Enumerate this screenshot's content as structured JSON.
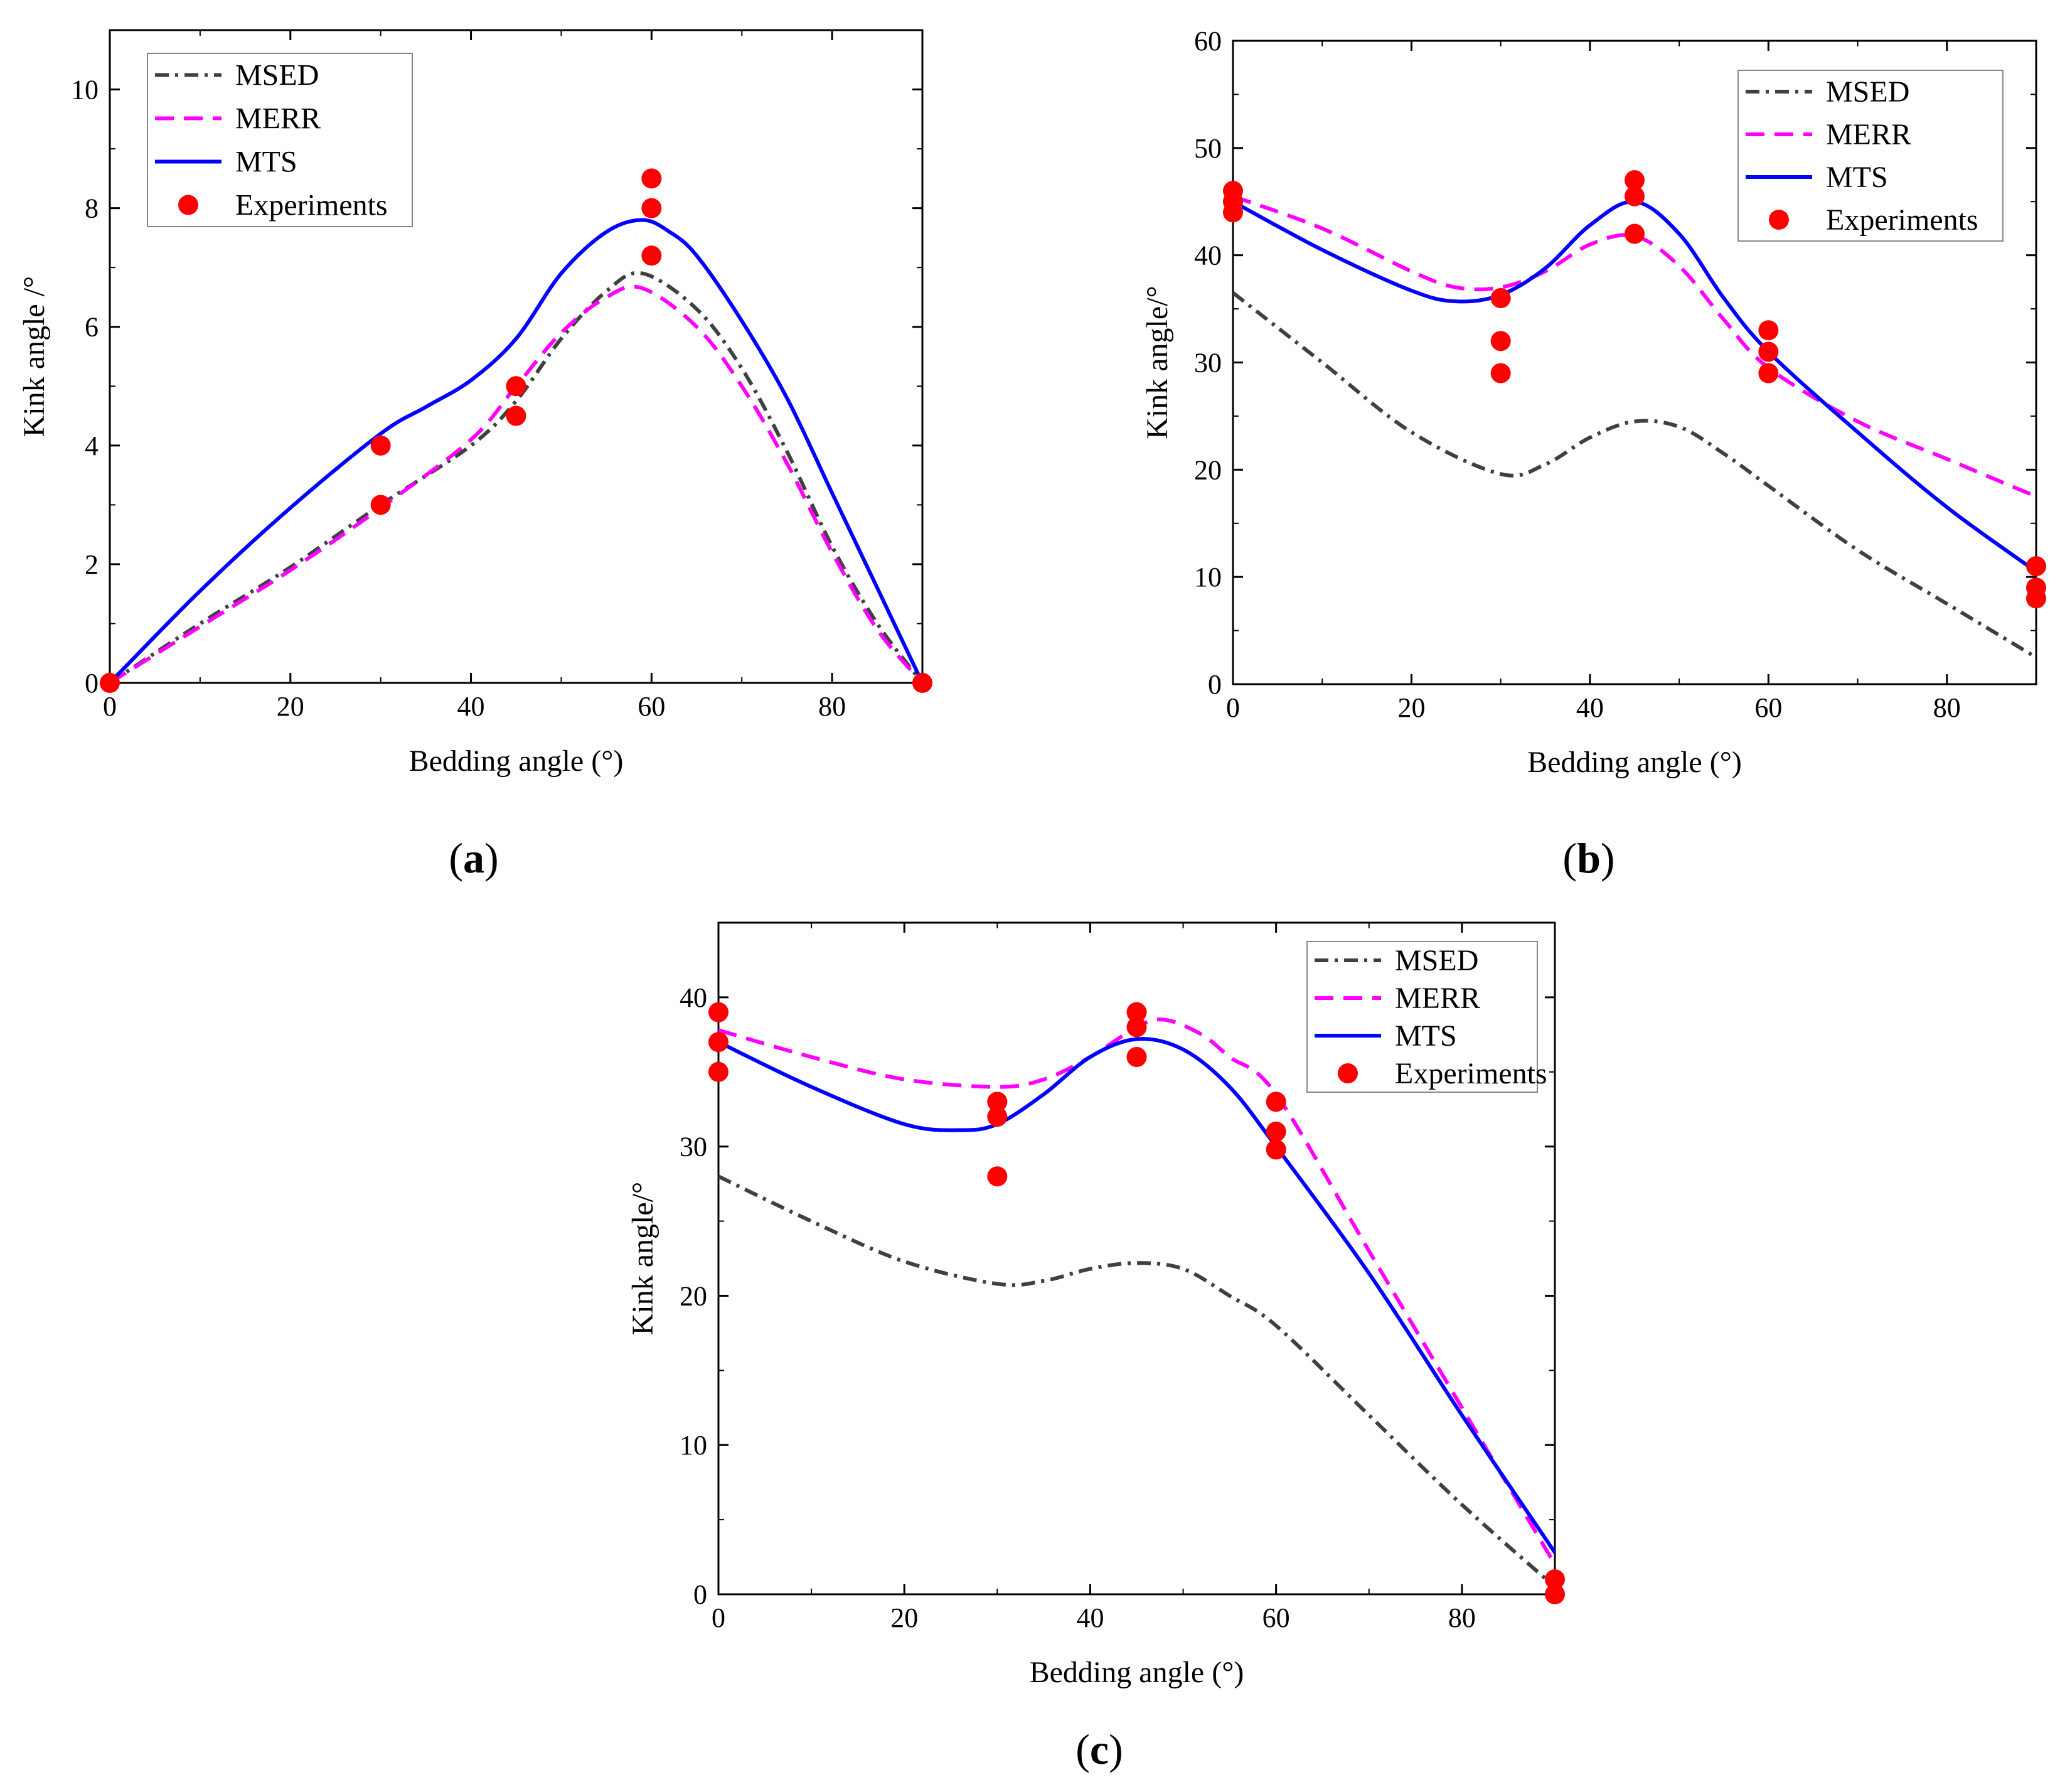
{
  "chart_data": [
    {
      "type": "line",
      "panel_label": "a",
      "xlabel": "Bedding angle (°)",
      "ylabel": "Kink angle /°",
      "xlim": [
        0,
        90
      ],
      "ylim": [
        0,
        11
      ],
      "xticks": [
        0,
        20,
        40,
        60,
        80
      ],
      "yticks": [
        0,
        2,
        4,
        6,
        8,
        10
      ],
      "legend_position": "top-left",
      "series": [
        {
          "name": "MSED",
          "style": "dash-dot",
          "color": "#404040",
          "x": [
            0,
            10,
            20,
            30,
            40,
            45,
            50,
            55,
            59,
            65,
            70,
            75,
            80,
            85,
            90
          ],
          "y": [
            0,
            1.0,
            1.95,
            3.0,
            4.0,
            4.75,
            5.8,
            6.6,
            6.9,
            6.3,
            5.3,
            3.9,
            2.3,
            1.0,
            0
          ]
        },
        {
          "name": "MERR",
          "style": "dashed",
          "color": "#ff00ff",
          "x": [
            0,
            10,
            20,
            30,
            40,
            45,
            50,
            55,
            59,
            65,
            70,
            75,
            80,
            85,
            90
          ],
          "y": [
            0,
            0.95,
            1.9,
            2.95,
            4.1,
            5.0,
            5.9,
            6.5,
            6.65,
            6.0,
            5.0,
            3.7,
            2.2,
            0.9,
            0
          ]
        },
        {
          "name": "MTS",
          "style": "solid",
          "color": "#0000ff",
          "x": [
            0,
            10,
            20,
            30,
            35,
            40,
            45,
            50,
            55,
            59,
            62,
            65,
            70,
            75,
            80,
            85,
            90
          ],
          "y": [
            0,
            1.55,
            2.95,
            4.2,
            4.65,
            5.1,
            5.8,
            6.9,
            7.6,
            7.8,
            7.6,
            7.2,
            6.1,
            4.8,
            3.2,
            1.6,
            0
          ]
        },
        {
          "name": "Experiments",
          "style": "markers",
          "color": "#ff0000",
          "x": [
            0,
            30,
            30,
            45,
            45,
            60,
            60,
            60,
            90
          ],
          "y": [
            0,
            4.0,
            3.0,
            5.0,
            4.5,
            8.5,
            8.0,
            7.2,
            0
          ]
        }
      ]
    },
    {
      "type": "line",
      "panel_label": "b",
      "xlabel": "Bedding angle (°)",
      "ylabel": "Kink angle/°",
      "xlim": [
        0,
        90
      ],
      "ylim": [
        0,
        60
      ],
      "xticks": [
        0,
        20,
        40,
        60,
        80
      ],
      "yticks": [
        0,
        10,
        20,
        30,
        40,
        50,
        60
      ],
      "legend_position": "top-right",
      "series": [
        {
          "name": "MSED",
          "style": "dash-dot",
          "color": "#404040",
          "x": [
            0,
            10,
            20,
            30,
            35,
            40,
            45,
            50,
            55,
            60,
            70,
            80,
            90
          ],
          "y": [
            36.5,
            30.0,
            23.5,
            19.6,
            20.5,
            23.0,
            24.5,
            24.0,
            21.5,
            18.5,
            12.5,
            7.5,
            2.5
          ]
        },
        {
          "name": "MERR",
          "style": "dashed",
          "color": "#ff00ff",
          "x": [
            0,
            10,
            20,
            25,
            30,
            35,
            40,
            45,
            50,
            55,
            60,
            70,
            80,
            90
          ],
          "y": [
            45.5,
            42.5,
            38.5,
            37.0,
            37.0,
            38.5,
            41.0,
            41.8,
            39.0,
            34.0,
            29.5,
            24.5,
            21.0,
            17.5
          ]
        },
        {
          "name": "MTS",
          "style": "solid",
          "color": "#0000ff",
          "x": [
            0,
            10,
            20,
            25,
            30,
            35,
            40,
            45,
            50,
            55,
            60,
            70,
            80,
            90
          ],
          "y": [
            45.0,
            40.5,
            36.7,
            35.7,
            36.3,
            38.8,
            42.8,
            45.0,
            42.0,
            36.0,
            31.0,
            23.5,
            16.5,
            10.5
          ]
        },
        {
          "name": "Experiments",
          "style": "markers",
          "color": "#ff0000",
          "x": [
            0,
            0,
            0,
            30,
            30,
            30,
            45,
            45,
            45,
            60,
            60,
            60,
            90,
            90,
            90
          ],
          "y": [
            46.0,
            45.0,
            44.0,
            36.0,
            32.0,
            29.0,
            47.0,
            45.5,
            42.0,
            33.0,
            31.0,
            29.0,
            11.0,
            9.0,
            8.0
          ]
        }
      ]
    },
    {
      "type": "line",
      "panel_label": "c",
      "xlabel": "Bedding angle (°)",
      "ylabel": "Kink angle/°",
      "xlim": [
        0,
        90
      ],
      "ylim": [
        0,
        45
      ],
      "xticks": [
        0,
        20,
        40,
        60,
        80
      ],
      "yticks": [
        0,
        10,
        20,
        30,
        40
      ],
      "legend_position": "top-right",
      "series": [
        {
          "name": "MSED",
          "style": "dash-dot",
          "color": "#404040",
          "x": [
            0,
            10,
            20,
            30,
            35,
            40,
            45,
            50,
            55,
            60,
            70,
            80,
            90
          ],
          "y": [
            28.0,
            25.0,
            22.3,
            20.8,
            21.0,
            21.8,
            22.2,
            21.8,
            20.0,
            18.0,
            12.0,
            6.0,
            0.5
          ]
        },
        {
          "name": "MERR",
          "style": "dashed",
          "color": "#ff00ff",
          "x": [
            0,
            10,
            20,
            30,
            35,
            40,
            45,
            48,
            52,
            55,
            60,
            70,
            80,
            90
          ],
          "y": [
            37.8,
            36.0,
            34.5,
            34.0,
            34.5,
            36.0,
            38.0,
            38.5,
            37.5,
            36.0,
            33.5,
            23.0,
            12.5,
            2.0
          ]
        },
        {
          "name": "MTS",
          "style": "solid",
          "color": "#0000ff",
          "x": [
            0,
            10,
            20,
            26,
            30,
            35,
            40,
            45,
            50,
            55,
            60,
            70,
            80,
            90
          ],
          "y": [
            37.0,
            34.0,
            31.5,
            31.1,
            31.5,
            33.5,
            36.0,
            37.2,
            36.5,
            34.0,
            30.0,
            21.5,
            12.0,
            2.8
          ]
        },
        {
          "name": "Experiments",
          "style": "markers",
          "color": "#ff0000",
          "x": [
            0,
            0,
            0,
            30,
            30,
            30,
            45,
            45,
            45,
            60,
            60,
            60,
            90,
            90
          ],
          "y": [
            39.0,
            37.0,
            35.0,
            33.0,
            32.0,
            28.0,
            39.0,
            38.0,
            36.0,
            33.0,
            31.0,
            29.8,
            1.0,
            0.0
          ]
        }
      ]
    }
  ]
}
